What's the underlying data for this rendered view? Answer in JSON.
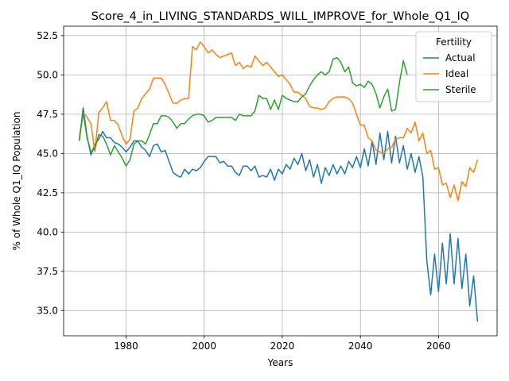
{
  "chart_data": {
    "type": "line",
    "title": "Score_4_in_LIVING_STANDARDS_WILL_IMPROVE_for_Whole_Q1_IQ",
    "xlabel": "Years",
    "ylabel": "% of Whole Q1_IQ Population",
    "xlim": [
      1964,
      2075
    ],
    "ylim": [
      33.4,
      53.1
    ],
    "xticks": [
      1980,
      2000,
      2020,
      2040,
      2060
    ],
    "yticks": [
      35.0,
      37.5,
      40.0,
      42.5,
      45.0,
      47.5,
      50.0,
      52.5
    ],
    "grid": true,
    "legend": {
      "title": "Fertility",
      "placement": "top-right"
    },
    "series": [
      {
        "name": "Actual",
        "color": "#1f77b4",
        "x": [
          1968,
          1969,
          1970,
          1971,
          1972,
          1973,
          1974,
          1975,
          1976,
          1977,
          1978,
          1979,
          1980,
          1981,
          1982,
          1983,
          1984,
          1985,
          1986,
          1987,
          1988,
          1989,
          1990,
          1991,
          1992,
          1993,
          1994,
          1995,
          1996,
          1997,
          1998,
          1999,
          2000,
          2001,
          2002,
          2003,
          2004,
          2005,
          2006,
          2007,
          2008,
          2009,
          2010,
          2011,
          2012,
          2013,
          2014,
          2015,
          2016,
          2017,
          2018,
          2019,
          2020,
          2021,
          2022,
          2023,
          2024,
          2025,
          2026,
          2027,
          2028,
          2029,
          2030,
          2031,
          2032,
          2033,
          2034,
          2035,
          2036,
          2037,
          2038,
          2039,
          2040,
          2041,
          2042,
          2043,
          2044,
          2045,
          2046,
          2047,
          2048,
          2049,
          2050,
          2051,
          2052,
          2053,
          2054,
          2055,
          2056,
          2057,
          2058,
          2059,
          2060,
          2061,
          2062,
          2063,
          2064,
          2065,
          2066,
          2067,
          2068,
          2069,
          2070
        ],
        "y": [
          45.8,
          47.9,
          46.1,
          44.9,
          45.6,
          45.9,
          46.4,
          46.0,
          46.0,
          45.7,
          45.6,
          45.4,
          45.1,
          45.4,
          45.8,
          45.8,
          45.4,
          45.2,
          44.8,
          45.5,
          45.6,
          45.1,
          45.2,
          44.5,
          43.8,
          43.6,
          43.5,
          44.0,
          43.7,
          44.0,
          43.9,
          44.1,
          44.5,
          44.8,
          44.8,
          44.8,
          44.4,
          44.5,
          44.2,
          44.2,
          43.8,
          43.6,
          44.2,
          44.2,
          43.9,
          44.2,
          43.5,
          43.6,
          43.5,
          44.0,
          43.3,
          44.0,
          43.7,
          44.3,
          44.0,
          44.7,
          44.3,
          45.0,
          43.9,
          44.6,
          43.5,
          44.3,
          43.1,
          44.1,
          43.6,
          44.3,
          43.7,
          44.2,
          43.7,
          44.5,
          44.1,
          44.8,
          44.1,
          45.3,
          44.2,
          45.8,
          44.3,
          46.3,
          44.6,
          46.4,
          44.4,
          46.1,
          44.4,
          45.5,
          44.0,
          45.0,
          43.8,
          44.8,
          43.5,
          38.2,
          36.0,
          38.6,
          36.2,
          39.3,
          36.7,
          39.9,
          36.7,
          39.6,
          36.4,
          38.6,
          35.3,
          37.2,
          34.3
        ]
      },
      {
        "name": "Ideal",
        "color": "#ff7f0e",
        "x": [
          1968,
          1969,
          1970,
          1971,
          1972,
          1973,
          1974,
          1975,
          1976,
          1977,
          1978,
          1979,
          1980,
          1981,
          1982,
          1983,
          1984,
          1985,
          1986,
          1987,
          1988,
          1989,
          1990,
          1991,
          1992,
          1993,
          1994,
          1995,
          1996,
          1997,
          1998,
          1999,
          2000,
          2001,
          2002,
          2003,
          2004,
          2005,
          2006,
          2007,
          2008,
          2009,
          2010,
          2011,
          2012,
          2013,
          2014,
          2015,
          2016,
          2017,
          2018,
          2019,
          2020,
          2021,
          2022,
          2023,
          2024,
          2025,
          2026,
          2027,
          2028,
          2029,
          2030,
          2031,
          2032,
          2033,
          2034,
          2035,
          2036,
          2037,
          2038,
          2039,
          2040,
          2041,
          2042,
          2043,
          2044,
          2045,
          2046,
          2047,
          2048,
          2049,
          2050,
          2051,
          2052,
          2053,
          2054,
          2055,
          2056,
          2057,
          2058,
          2059,
          2060,
          2061,
          2062,
          2063,
          2064,
          2065,
          2066,
          2067,
          2068,
          2069,
          2070
        ],
        "y": [
          46.0,
          47.6,
          47.3,
          46.9,
          45.1,
          47.6,
          47.9,
          48.3,
          47.1,
          47.1,
          46.8,
          46.1,
          45.6,
          45.9,
          47.7,
          47.9,
          48.5,
          48.8,
          49.1,
          49.8,
          49.8,
          49.8,
          49.4,
          48.8,
          48.2,
          48.2,
          48.4,
          48.5,
          48.5,
          51.8,
          51.6,
          52.1,
          51.8,
          51.4,
          51.6,
          51.3,
          51.1,
          51.2,
          51.3,
          51.4,
          50.6,
          50.8,
          50.4,
          50.6,
          50.5,
          51.2,
          50.9,
          50.6,
          50.8,
          50.5,
          50.2,
          49.9,
          50.0,
          49.7,
          49.4,
          48.9,
          48.9,
          48.7,
          48.5,
          48.0,
          47.9,
          47.9,
          47.8,
          47.9,
          48.3,
          48.5,
          48.6,
          48.6,
          48.6,
          48.5,
          48.2,
          47.5,
          46.8,
          46.8,
          46.0,
          45.8,
          45.2,
          45.1,
          45.0,
          45.3,
          45.4,
          45.9,
          46.0,
          46.0,
          46.6,
          46.3,
          47.0,
          45.8,
          46.3,
          45.0,
          45.2,
          44.0,
          44.1,
          43.0,
          43.1,
          42.2,
          43.0,
          42.0,
          43.2,
          42.9,
          44.1,
          43.8,
          44.6
        ]
      },
      {
        "name": "Sterile",
        "color": "#2ca02c",
        "x": [
          1968,
          1969,
          1970,
          1971,
          1972,
          1973,
          1974,
          1975,
          1976,
          1977,
          1978,
          1979,
          1980,
          1981,
          1982,
          1983,
          1984,
          1985,
          1986,
          1987,
          1988,
          1989,
          1990,
          1991,
          1992,
          1993,
          1994,
          1995,
          1996,
          1997,
          1998,
          1999,
          2000,
          2001,
          2002,
          2003,
          2004,
          2005,
          2006,
          2007,
          2008,
          2009,
          2010,
          2011,
          2012,
          2013,
          2014,
          2015,
          2016,
          2017,
          2018,
          2019,
          2020,
          2021,
          2022,
          2023,
          2024,
          2025,
          2026,
          2027,
          2028,
          2029,
          2030,
          2031,
          2032,
          2033,
          2034,
          2035,
          2036,
          2037,
          2038,
          2039,
          2040,
          2041,
          2042,
          2043,
          2044,
          2045,
          2046,
          2047,
          2048,
          2049,
          2050,
          2051,
          2052
        ],
        "y": [
          45.8,
          47.6,
          46.0,
          45.1,
          45.3,
          46.2,
          46.1,
          45.6,
          44.9,
          45.5,
          45.1,
          44.7,
          44.2,
          44.6,
          45.6,
          45.8,
          45.8,
          45.6,
          46.2,
          46.9,
          46.9,
          47.4,
          47.4,
          47.3,
          47.0,
          46.6,
          46.9,
          46.9,
          47.2,
          47.4,
          47.5,
          47.5,
          47.4,
          47.0,
          47.1,
          47.3,
          47.3,
          47.3,
          47.3,
          47.3,
          47.1,
          47.5,
          47.4,
          47.4,
          47.4,
          47.7,
          48.7,
          48.5,
          48.5,
          47.8,
          48.4,
          47.8,
          48.7,
          48.5,
          48.4,
          48.3,
          48.3,
          48.6,
          48.8,
          49.3,
          49.7,
          50.0,
          50.2,
          50.0,
          50.2,
          51.0,
          51.1,
          50.8,
          50.2,
          50.5,
          49.5,
          49.3,
          49.4,
          49.2,
          49.6,
          49.4,
          48.8,
          47.9,
          48.6,
          49.1,
          47.7,
          47.8,
          49.5,
          50.9,
          50.0
        ]
      }
    ]
  }
}
